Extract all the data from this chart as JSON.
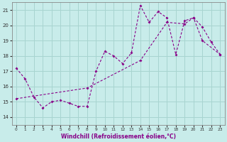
{
  "xlabel": "Windchill (Refroidissement éolien,°C)",
  "bg_color": "#c8ecea",
  "grid_color": "#a8d4d0",
  "line_color": "#880088",
  "xlim": [
    -0.5,
    23.5
  ],
  "ylim": [
    13.5,
    21.5
  ],
  "yticks": [
    14,
    15,
    16,
    17,
    18,
    19,
    20,
    21
  ],
  "xticks": [
    0,
    1,
    2,
    3,
    4,
    5,
    6,
    7,
    8,
    9,
    10,
    11,
    12,
    13,
    14,
    15,
    16,
    17,
    18,
    19,
    20,
    21,
    22,
    23
  ],
  "line1_x": [
    0,
    1,
    2,
    3,
    4,
    5,
    6,
    7,
    8,
    9,
    10,
    11,
    12,
    13,
    14,
    15,
    16,
    17,
    18,
    19,
    20,
    21,
    22,
    23
  ],
  "line1_y": [
    17.2,
    16.5,
    15.3,
    14.6,
    15.0,
    15.1,
    14.9,
    14.7,
    14.7,
    17.0,
    18.3,
    18.0,
    17.5,
    18.2,
    21.3,
    20.2,
    20.9,
    20.5,
    18.1,
    20.3,
    20.5,
    19.9,
    18.9,
    18.1
  ],
  "line2_x": [
    0,
    8,
    14,
    17,
    19,
    20,
    21,
    23
  ],
  "line2_y": [
    15.2,
    15.9,
    17.7,
    20.2,
    20.1,
    20.5,
    19.0,
    18.1
  ]
}
